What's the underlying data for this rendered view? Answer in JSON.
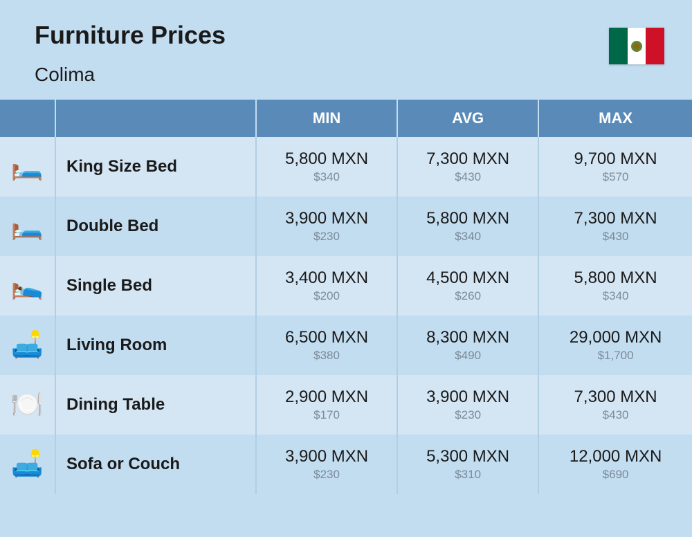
{
  "header": {
    "title": "Furniture Prices",
    "subtitle": "Colima"
  },
  "flag": {
    "colors": [
      "#006847",
      "#ffffff",
      "#ce1126"
    ]
  },
  "table": {
    "type": "table",
    "background_color": "#c2dcf0",
    "header_bg": "#5a8bb8",
    "header_text_color": "#ffffff",
    "row_odd_bg": "#d4e5f3",
    "row_even_bg": "#c2dcf0",
    "border_color": "#b0cfe5",
    "title_fontsize": 36,
    "label_fontsize": 24,
    "price_main_fontsize": 24,
    "price_sub_fontsize": 17,
    "price_sub_color": "#7a8a98",
    "columns": [
      "",
      "",
      "MIN",
      "AVG",
      "MAX"
    ],
    "rows": [
      {
        "icon": "🛏️",
        "label": "King Size Bed",
        "min_mxn": "5,800 MXN",
        "min_usd": "$340",
        "avg_mxn": "7,300 MXN",
        "avg_usd": "$430",
        "max_mxn": "9,700 MXN",
        "max_usd": "$570"
      },
      {
        "icon": "🛏️",
        "label": "Double Bed",
        "min_mxn": "3,900 MXN",
        "min_usd": "$230",
        "avg_mxn": "5,800 MXN",
        "avg_usd": "$340",
        "max_mxn": "7,300 MXN",
        "max_usd": "$430"
      },
      {
        "icon": "🛌",
        "label": "Single Bed",
        "min_mxn": "3,400 MXN",
        "min_usd": "$200",
        "avg_mxn": "4,500 MXN",
        "avg_usd": "$260",
        "max_mxn": "5,800 MXN",
        "max_usd": "$340"
      },
      {
        "icon": "🛋️",
        "label": "Living Room",
        "min_mxn": "6,500 MXN",
        "min_usd": "$380",
        "avg_mxn": "8,300 MXN",
        "avg_usd": "$490",
        "max_mxn": "29,000 MXN",
        "max_usd": "$1,700"
      },
      {
        "icon": "🍽️",
        "label": "Dining Table",
        "min_mxn": "2,900 MXN",
        "min_usd": "$170",
        "avg_mxn": "3,900 MXN",
        "avg_usd": "$230",
        "max_mxn": "7,300 MXN",
        "max_usd": "$430"
      },
      {
        "icon": "🛋️",
        "label": "Sofa or Couch",
        "min_mxn": "3,900 MXN",
        "min_usd": "$230",
        "avg_mxn": "5,300 MXN",
        "avg_usd": "$310",
        "max_mxn": "12,000 MXN",
        "max_usd": "$690"
      }
    ]
  }
}
